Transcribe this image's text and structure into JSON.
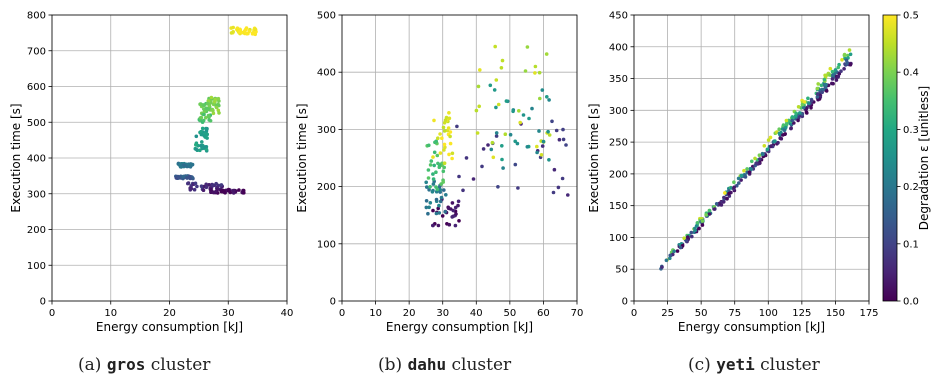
{
  "chart_data": [
    {
      "type": "scatter",
      "id": "gros",
      "xlabel": "Energy consumption [kJ]",
      "ylabel": "Execution time [s]",
      "xlim": [
        0,
        40
      ],
      "ylim": [
        0,
        800
      ],
      "xticks": [
        "0",
        "10",
        "20",
        "30",
        "40"
      ],
      "yticks": [
        "0",
        "100",
        "200",
        "300",
        "400",
        "500",
        "600",
        "700",
        "800"
      ],
      "xtick_values": [
        0,
        10,
        20,
        30,
        40
      ],
      "ytick_values": [
        0,
        100,
        200,
        300,
        400,
        500,
        600,
        700,
        800
      ],
      "grid": true,
      "color_encoding": "Degradation ε",
      "clusters": [
        {
          "x": [
            30.5,
            35
          ],
          "y": [
            745,
            765
          ],
          "deg": 0.5
        },
        {
          "x": [
            26.5,
            28.5
          ],
          "y": [
            525,
            570
          ],
          "deg": 0.4
        },
        {
          "x": [
            25,
            27
          ],
          "y": [
            500,
            555
          ],
          "deg": 0.37
        },
        {
          "x": [
            24.3,
            26.5
          ],
          "y": [
            420,
            485
          ],
          "deg": 0.28
        },
        {
          "x": [
            21.5,
            24
          ],
          "y": [
            375,
            385
          ],
          "deg": 0.2
        },
        {
          "x": [
            21,
            24
          ],
          "y": [
            342,
            350
          ],
          "deg": 0.14
        },
        {
          "x": [
            23,
            29
          ],
          "y": [
            310,
            330
          ],
          "deg": 0.06
        },
        {
          "x": [
            27,
            33
          ],
          "y": [
            302,
            312
          ],
          "deg": 0.01
        }
      ]
    },
    {
      "type": "scatter",
      "id": "dahu",
      "xlabel": "Energy consumption [kJ]",
      "ylabel": "Execution time [s]",
      "xlim": [
        0,
        70
      ],
      "ylim": [
        0,
        500
      ],
      "xticks": [
        "0",
        "10",
        "20",
        "30",
        "40",
        "50",
        "60",
        "70"
      ],
      "yticks": [
        "0",
        "100",
        "200",
        "300",
        "400",
        "500"
      ],
      "xtick_values": [
        0,
        10,
        20,
        30,
        40,
        50,
        60,
        70
      ],
      "ytick_values": [
        0,
        100,
        200,
        300,
        400,
        500
      ],
      "grid": true,
      "color_encoding": "Degradation ε",
      "clusters": [
        {
          "x": [
            27,
            35
          ],
          "y": [
            130,
            180
          ],
          "deg": 0.03
        },
        {
          "x": [
            33,
            69
          ],
          "y": [
            180,
            320
          ],
          "deg": 0.08
        },
        {
          "x": [
            25,
            31
          ],
          "y": [
            150,
            210
          ],
          "deg": 0.2
        },
        {
          "x": [
            25,
            31
          ],
          "y": [
            195,
            280
          ],
          "deg": 0.35
        },
        {
          "x": [
            27,
            33
          ],
          "y": [
            240,
            330
          ],
          "deg": 0.48
        },
        {
          "x": [
            40,
            62
          ],
          "y": [
            250,
            460
          ],
          "deg": 0.45
        },
        {
          "x": [
            44,
            62
          ],
          "y": [
            230,
            380
          ],
          "deg": 0.25
        }
      ]
    },
    {
      "type": "scatter",
      "id": "yeti",
      "xlabel": "Energy consumption [kJ]",
      "ylabel": "Execution time [s]",
      "xlim": [
        0,
        175
      ],
      "ylim": [
        0,
        450
      ],
      "xticks": [
        "0",
        "25",
        "50",
        "75",
        "100",
        "125",
        "150",
        "175"
      ],
      "yticks": [
        "0",
        "50",
        "100",
        "150",
        "200",
        "250",
        "300",
        "350",
        "400",
        "450"
      ],
      "xtick_values": [
        0,
        25,
        50,
        75,
        100,
        125,
        150,
        175
      ],
      "ytick_values": [
        0,
        50,
        100,
        150,
        200,
        250,
        300,
        350,
        400,
        450
      ],
      "grid": true,
      "color_encoding": "Degradation ε",
      "trend": {
        "x": [
          20,
          162
        ],
        "y": [
          52,
          382
        ]
      },
      "colorbar": {
        "label": "Degradation ε [unitless]",
        "range": [
          0,
          0.5
        ],
        "ticks": [
          "0.0",
          "0.1",
          "0.2",
          "0.3",
          "0.4",
          "0.5"
        ],
        "tick_values": [
          0,
          0.1,
          0.2,
          0.3,
          0.4,
          0.5
        ],
        "colormap": [
          "#440154",
          "#482475",
          "#414487",
          "#355f8d",
          "#2a788e",
          "#21918c",
          "#22a884",
          "#44bf70",
          "#7ad151",
          "#bddf26",
          "#fde725"
        ]
      }
    }
  ],
  "captions": [
    {
      "prefix": "(a) ",
      "name": "gros",
      "suffix": " cluster"
    },
    {
      "prefix": "(b) ",
      "name": "dahu",
      "suffix": " cluster"
    },
    {
      "prefix": "(c) ",
      "name": "yeti",
      "suffix": " cluster"
    }
  ]
}
